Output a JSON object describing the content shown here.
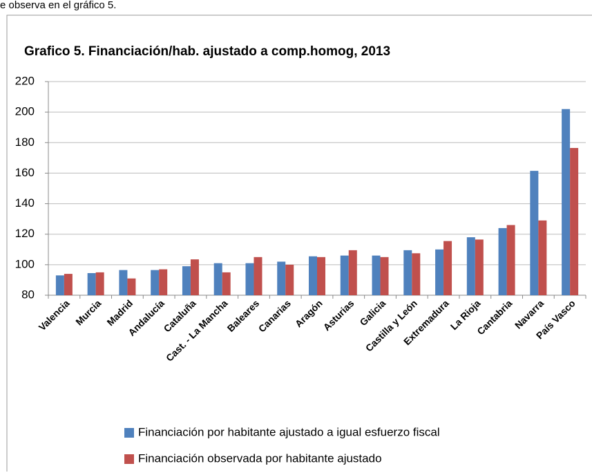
{
  "context_text": "e observa en el gráfico 5.",
  "chart_data": {
    "type": "bar",
    "title": "Grafico 5. Financiación/hab. ajustado a comp.homog, 2013",
    "categories": [
      "Valencia",
      "Murcia",
      "Madrid",
      "Andalucía",
      "Cataluña",
      "Cast. - La Mancha",
      "Baleares",
      "Canarias",
      "Aragón",
      "Asturias",
      "Galicia",
      "Castilla y León",
      "Extremadura",
      "La Rioja",
      "Cantabria",
      "Navarra",
      "País Vasco"
    ],
    "series": [
      {
        "name": "Financiación por habitante ajustado a igual esfuerzo fiscal",
        "color": "#4f81bd",
        "values": [
          93,
          94.5,
          96.5,
          96.5,
          99,
          101,
          101,
          102,
          105.5,
          106,
          106,
          109.5,
          110,
          118,
          124,
          161.5,
          202
        ]
      },
      {
        "name": "Financiación observada por habitante ajustado",
        "color": "#c0504d",
        "values": [
          94,
          95,
          91,
          97,
          103.5,
          95,
          105,
          100,
          105,
          109.5,
          105,
          107.5,
          115.5,
          116.5,
          126,
          129,
          176.5
        ]
      }
    ],
    "ylim": [
      80,
      220
    ],
    "yticks": [
      80,
      100,
      120,
      140,
      160,
      180,
      200,
      220
    ],
    "grid": true,
    "legend": "bottom"
  }
}
